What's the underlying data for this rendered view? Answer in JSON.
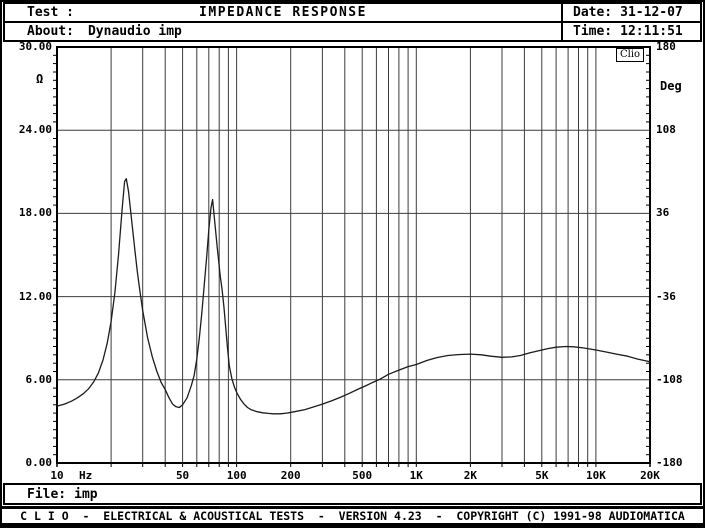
{
  "colors": {
    "ink": "#000000",
    "grid": "#3c3c3c",
    "curve": "#1c1c1c",
    "background": "#ffffff"
  },
  "header": {
    "test_label": "Test :",
    "title": "IMPEDANCE RESPONSE",
    "about_label": "About:",
    "about_value": "Dynaudio imp",
    "date_label": "Date:",
    "date_value": "31-12-07",
    "time_label": "Time:",
    "time_value": "12:11:51"
  },
  "file_bar": {
    "label": "File:",
    "value": "imp"
  },
  "footer": {
    "credits": "C L I O  -  ELECTRICAL & ACOUSTICAL TESTS  -  VERSION 4.23  -  COPYRIGHT (C) 1991-98 AUDIOMATICA"
  },
  "chart_data": {
    "type": "line",
    "title": "IMPEDANCE RESPONSE",
    "watermark": "Clio",
    "grid": true,
    "x_axis": {
      "unit": "Hz",
      "scale": "log",
      "min": 10,
      "max": 20000,
      "ticks": [
        {
          "label": "10",
          "f": 10
        },
        {
          "label": "50",
          "f": 50
        },
        {
          "label": "100",
          "f": 100
        },
        {
          "label": "200",
          "f": 200
        },
        {
          "label": "500",
          "f": 500
        },
        {
          "label": "1K",
          "f": 1000
        },
        {
          "label": "2K",
          "f": 2000
        },
        {
          "label": "5K",
          "f": 5000
        },
        {
          "label": "10K",
          "f": 10000
        },
        {
          "label": "20K",
          "f": 20000
        }
      ]
    },
    "y_left": {
      "unit": "Ω",
      "min": 0,
      "max": 30,
      "ticks": [
        {
          "label": "30.00",
          "v": 30
        },
        {
          "label": "24.00",
          "v": 24
        },
        {
          "label": "18.00",
          "v": 18
        },
        {
          "label": "12.00",
          "v": 12
        },
        {
          "label": "6.00",
          "v": 6
        },
        {
          "label": "0.00",
          "v": 0
        }
      ]
    },
    "y_right": {
      "unit": "Deg",
      "min": -180,
      "max": 180,
      "ticks": [
        {
          "label": "180",
          "v": 180
        },
        {
          "label": "108",
          "v": 108
        },
        {
          "label": "36",
          "v": 36
        },
        {
          "label": "-36",
          "v": -36
        },
        {
          "label": "-108",
          "v": -108
        },
        {
          "label": "-180",
          "v": -180
        }
      ]
    },
    "series": [
      {
        "name": "impedance-magnitude",
        "axis": "left",
        "points": [
          [
            10,
            4.1
          ],
          [
            11,
            4.25
          ],
          [
            12,
            4.45
          ],
          [
            13,
            4.7
          ],
          [
            14,
            5.0
          ],
          [
            15,
            5.35
          ],
          [
            16,
            5.85
          ],
          [
            17,
            6.5
          ],
          [
            18,
            7.4
          ],
          [
            19,
            8.6
          ],
          [
            20,
            10.2
          ],
          [
            21,
            12.3
          ],
          [
            22,
            15.0
          ],
          [
            23,
            18.2
          ],
          [
            23.8,
            20.3
          ],
          [
            24.3,
            20.5
          ],
          [
            25,
            19.6
          ],
          [
            26,
            17.6
          ],
          [
            27,
            15.6
          ],
          [
            28,
            13.8
          ],
          [
            29,
            12.3
          ],
          [
            30,
            11.0
          ],
          [
            32,
            9.0
          ],
          [
            34,
            7.6
          ],
          [
            36,
            6.6
          ],
          [
            38,
            5.8
          ],
          [
            40,
            5.3
          ],
          [
            42,
            4.7
          ],
          [
            44,
            4.25
          ],
          [
            46,
            4.05
          ],
          [
            48,
            4.0
          ],
          [
            50,
            4.2
          ],
          [
            53,
            4.7
          ],
          [
            56,
            5.6
          ],
          [
            58,
            6.3
          ],
          [
            60,
            7.5
          ],
          [
            62,
            9.0
          ],
          [
            64,
            10.8
          ],
          [
            66,
            12.8
          ],
          [
            68,
            14.8
          ],
          [
            70,
            16.8
          ],
          [
            72,
            18.4
          ],
          [
            73.5,
            19.0
          ],
          [
            75,
            17.8
          ],
          [
            78,
            15.5
          ],
          [
            81,
            13.5
          ],
          [
            83,
            12.5
          ],
          [
            85,
            11.2
          ],
          [
            87,
            9.7
          ],
          [
            89,
            8.3
          ],
          [
            91,
            7.0
          ],
          [
            94,
            6.1
          ],
          [
            97,
            5.5
          ],
          [
            100,
            5.1
          ],
          [
            105,
            4.6
          ],
          [
            110,
            4.25
          ],
          [
            115,
            4.0
          ],
          [
            120,
            3.85
          ],
          [
            130,
            3.7
          ],
          [
            140,
            3.62
          ],
          [
            150,
            3.58
          ],
          [
            160,
            3.55
          ],
          [
            175,
            3.55
          ],
          [
            190,
            3.6
          ],
          [
            210,
            3.7
          ],
          [
            240,
            3.85
          ],
          [
            270,
            4.05
          ],
          [
            300,
            4.25
          ],
          [
            340,
            4.5
          ],
          [
            380,
            4.75
          ],
          [
            420,
            5.0
          ],
          [
            470,
            5.3
          ],
          [
            520,
            5.55
          ],
          [
            570,
            5.8
          ],
          [
            630,
            6.05
          ],
          [
            700,
            6.4
          ],
          [
            800,
            6.7
          ],
          [
            900,
            6.95
          ],
          [
            1000,
            7.1
          ],
          [
            1150,
            7.4
          ],
          [
            1300,
            7.6
          ],
          [
            1500,
            7.75
          ],
          [
            1700,
            7.82
          ],
          [
            2000,
            7.85
          ],
          [
            2300,
            7.8
          ],
          [
            2600,
            7.7
          ],
          [
            3000,
            7.62
          ],
          [
            3400,
            7.65
          ],
          [
            3800,
            7.75
          ],
          [
            4300,
            7.95
          ],
          [
            4800,
            8.1
          ],
          [
            5400,
            8.25
          ],
          [
            6000,
            8.35
          ],
          [
            6800,
            8.4
          ],
          [
            7500,
            8.38
          ],
          [
            8500,
            8.3
          ],
          [
            10000,
            8.15
          ],
          [
            11500,
            8.0
          ],
          [
            13000,
            7.85
          ],
          [
            15000,
            7.7
          ],
          [
            17000,
            7.5
          ],
          [
            20000,
            7.3
          ]
        ]
      }
    ]
  }
}
